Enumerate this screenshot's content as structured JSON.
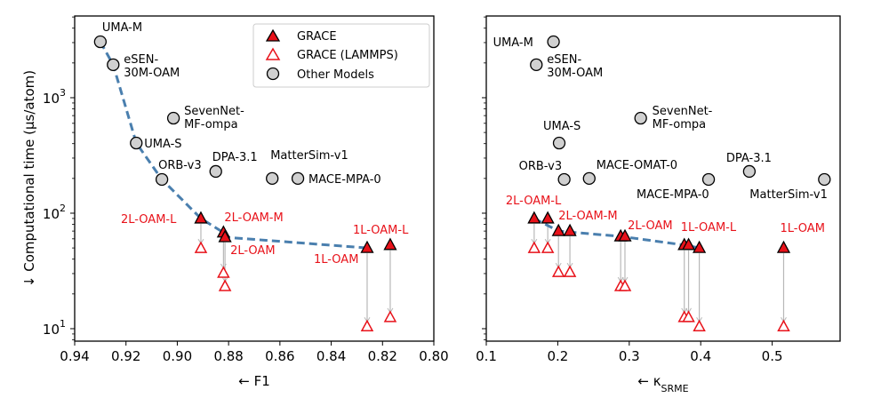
{
  "colors": {
    "grace_fill": "#e8121a",
    "grace_edge": "#000000",
    "lammps_edge": "#e8121a",
    "other_fill": "#d0d0d0",
    "other_edge": "#000000",
    "pareto_line": "#4a7fae",
    "connector": "#b8b8b8"
  },
  "legend": {
    "items": [
      {
        "label": "GRACE",
        "marker": "filled-triangle"
      },
      {
        "label": "GRACE (LAMMPS)",
        "marker": "hollow-triangle"
      },
      {
        "label": "Other Models",
        "marker": "circle"
      }
    ],
    "placement": "top-right of left panel"
  },
  "chart_data": [
    {
      "type": "scatter",
      "panel": "left",
      "xlabel": "← F1",
      "ylabel": "↓ Computational time (μs/atom)",
      "xlim": [
        0.94,
        0.8
      ],
      "ylim": [
        7.8,
        5100
      ],
      "yscale": "log",
      "xticks": [
        0.94,
        0.92,
        0.9,
        0.88,
        0.86,
        0.84,
        0.82,
        0.8
      ],
      "xtick_labels": [
        "0.94",
        "0.92",
        "0.90",
        "0.88",
        "0.86",
        "0.84",
        "0.82",
        "0.80"
      ],
      "yticks": [
        10,
        100,
        1000
      ],
      "ytick_labels": [
        {
          "base": "10",
          "exp": "1"
        },
        {
          "base": "10",
          "exp": "2"
        },
        {
          "base": "10",
          "exp": "3"
        }
      ],
      "grid": false,
      "other_models": [
        {
          "name": "UMA-M",
          "x": 0.93,
          "y": 3050
        },
        {
          "name": "eSEN-\n30M-OAM",
          "x": 0.925,
          "y": 1930
        },
        {
          "name": "UMA-S",
          "x": 0.916,
          "y": 405
        },
        {
          "name": "ORB-v3",
          "x": 0.906,
          "y": 196
        },
        {
          "name": "SevenNet-\nMF-ompa",
          "x": 0.9015,
          "y": 665
        },
        {
          "name": "DPA-3.1",
          "x": 0.885,
          "y": 230
        },
        {
          "name": "MatterSim-v1",
          "x": 0.863,
          "y": 200
        },
        {
          "name": "MACE-MPA-0",
          "x": 0.853,
          "y": 200
        }
      ],
      "grace": [
        {
          "name": "2L-OAM-L",
          "x": 0.8908,
          "y": 90,
          "y_lammps": 50
        },
        {
          "name": "2L-OAM-M",
          "x": 0.882,
          "y": 68,
          "y_lammps": 30.5
        },
        {
          "name": "2L-OAM",
          "x": 0.8814,
          "y": 62,
          "y_lammps": 23.4
        },
        {
          "name": "1L-OAM",
          "x": 0.826,
          "y": 50,
          "y_lammps": 10.5
        },
        {
          "name": "1L-OAM-L",
          "x": 0.817,
          "y": 53,
          "y_lammps": 12.6
        }
      ],
      "pareto_front": [
        [
          0.93,
          3050
        ],
        [
          0.925,
          1930
        ],
        [
          0.916,
          405
        ],
        [
          0.906,
          196
        ],
        [
          0.8908,
          90
        ],
        [
          0.882,
          68
        ],
        [
          0.8814,
          62
        ],
        [
          0.826,
          50
        ]
      ]
    },
    {
      "type": "scatter",
      "panel": "right",
      "xlabel": "← κ",
      "xlabel_sub": "SRME",
      "ylabel": "",
      "xlim": [
        0.1,
        0.595
      ],
      "ylim": [
        7.8,
        5100
      ],
      "yscale": "log",
      "xticks": [
        0.1,
        0.2,
        0.3,
        0.4,
        0.5
      ],
      "xtick_labels": [
        "0.1",
        "0.2",
        "0.3",
        "0.4",
        "0.5"
      ],
      "grid": false,
      "other_models": [
        {
          "name": "UMA-M",
          "x": 0.194,
          "y": 3050
        },
        {
          "name": "eSEN-\n30M-OAM",
          "x": 0.17,
          "y": 1930
        },
        {
          "name": "UMA-S",
          "x": 0.202,
          "y": 405
        },
        {
          "name": "ORB-v3",
          "x": 0.209,
          "y": 196
        },
        {
          "name": "MACE-OMAT-0",
          "x": 0.244,
          "y": 200
        },
        {
          "name": "SevenNet-\nMF-ompa",
          "x": 0.316,
          "y": 665
        },
        {
          "name": "MACE-MPA-0",
          "x": 0.411,
          "y": 196
        },
        {
          "name": "DPA-3.1",
          "x": 0.468,
          "y": 230
        },
        {
          "name": "MatterSim-v1",
          "x": 0.573,
          "y": 196
        }
      ],
      "grace": [
        {
          "name": "2L-OAM-L",
          "x": 0.167,
          "y": 90,
          "y_lammps": 50
        },
        {
          "name": "",
          "x": 0.186,
          "y": 90,
          "y_lammps": 50
        },
        {
          "name": "2L-OAM-M",
          "x": 0.201,
          "y": 70,
          "y_lammps": 31
        },
        {
          "name": "",
          "x": 0.217,
          "y": 70,
          "y_lammps": 31
        },
        {
          "name": "2L-OAM",
          "x": 0.288,
          "y": 63,
          "y_lammps": 23.4
        },
        {
          "name": "",
          "x": 0.294,
          "y": 63,
          "y_lammps": 23.4
        },
        {
          "name": "1L-OAM-L",
          "x": 0.377,
          "y": 53,
          "y_lammps": 12.6
        },
        {
          "name": "",
          "x": 0.383,
          "y": 53,
          "y_lammps": 12.6
        },
        {
          "name": "",
          "x": 0.398,
          "y": 50,
          "y_lammps": 10.5
        },
        {
          "name": "1L-OAM",
          "x": 0.516,
          "y": 50,
          "y_lammps": 10.5
        }
      ],
      "pareto_front": [
        [
          0.167,
          90
        ],
        [
          0.201,
          70
        ],
        [
          0.288,
          63
        ],
        [
          0.377,
          53
        ],
        [
          0.398,
          50
        ]
      ]
    }
  ]
}
